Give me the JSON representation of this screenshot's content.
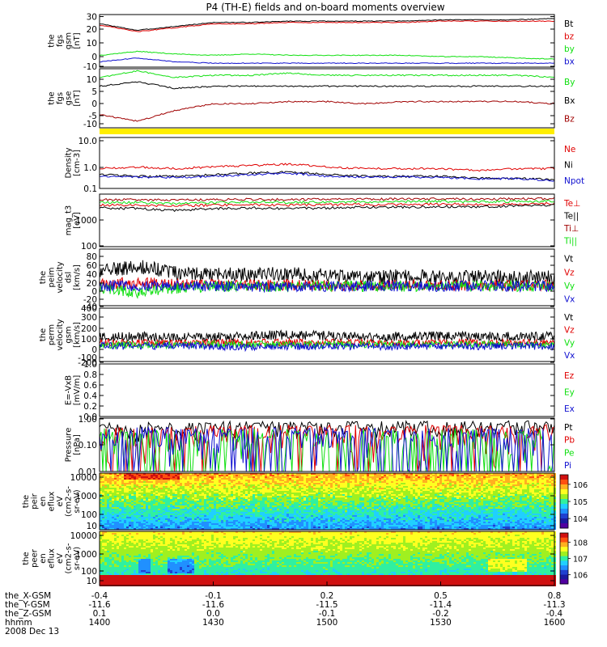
{
  "title": "P4 (TH-E) fields and on-board moments overview",
  "colors": {
    "black": "#000000",
    "red": "#e00000",
    "green": "#10e010",
    "blue": "#1010d0",
    "darkred": "#a00000",
    "yellow": "#ffee00"
  },
  "panels": [
    {
      "id": "fgs_gsm",
      "ylabel": [
        "the",
        "fgs",
        "gsm",
        "[nT]"
      ],
      "yticks": [
        "30",
        "20",
        "10",
        "0",
        "-10"
      ],
      "legend": [
        {
          "label": "Bt",
          "color": "#000000"
        },
        {
          "label": "bz",
          "color": "#e00000"
        },
        {
          "label": "by",
          "color": "#10e010"
        },
        {
          "label": "bx",
          "color": "#1010d0"
        }
      ]
    },
    {
      "id": "fgs_gse",
      "ylabel": [
        "the",
        "fgs",
        "gse",
        "[nT]"
      ],
      "yticks": [
        "10",
        "5",
        "0",
        "-5",
        "-10"
      ],
      "legend": [
        {
          "label": "By",
          "color": "#10e010"
        },
        {
          "label": "Bx",
          "color": "#000000"
        },
        {
          "label": "Bz",
          "color": "#a00000"
        }
      ]
    },
    {
      "id": "density",
      "ylabel": [
        "Density",
        "[cm-3]"
      ],
      "yticks": [
        "10.0",
        "1.0",
        "0.1"
      ],
      "legend": [
        {
          "label": "Ne",
          "color": "#e00000"
        },
        {
          "label": "Ni",
          "color": "#000000"
        },
        {
          "label": "Npot",
          "color": "#1010d0"
        }
      ]
    },
    {
      "id": "temperature",
      "ylabel": [
        "mag_t3",
        "[eV]"
      ],
      "yticks": [
        "1000",
        "100"
      ],
      "legend": [
        {
          "label": "Te⊥",
          "color": "#e00000"
        },
        {
          "label": "Te||",
          "color": "#000000"
        },
        {
          "label": "Ti⊥",
          "color": "#a00000"
        },
        {
          "label": "Ti||",
          "color": "#10e010"
        }
      ]
    },
    {
      "id": "peim_velocity",
      "ylabel": [
        "the",
        "peim",
        "velocity",
        "dsl",
        "[km/s]"
      ],
      "yticks": [
        "80",
        "60",
        "40",
        "20",
        "0",
        "-20",
        "-40"
      ],
      "legend": [
        {
          "label": "Vt",
          "color": "#000000"
        },
        {
          "label": "Vz",
          "color": "#e00000"
        },
        {
          "label": "Vy",
          "color": "#10e010"
        },
        {
          "label": "Vx",
          "color": "#1010d0"
        }
      ]
    },
    {
      "id": "perm_velocity",
      "ylabel": [
        "the",
        "perm",
        "velocity",
        "gsm",
        "[km/s]"
      ],
      "yticks": [
        "400",
        "300",
        "200",
        "100",
        "0",
        "-100",
        "-200"
      ],
      "legend": [
        {
          "label": "Vt",
          "color": "#000000"
        },
        {
          "label": "Vz",
          "color": "#e00000"
        },
        {
          "label": "Vy",
          "color": "#10e010"
        },
        {
          "label": "Vx",
          "color": "#1010d0"
        }
      ]
    },
    {
      "id": "efield",
      "ylabel": [
        "E=-VxB",
        "[mV/m]"
      ],
      "yticks": [
        "1.0",
        "0.8",
        "0.6",
        "0.4",
        "0.2",
        "0.0"
      ],
      "legend": [
        {
          "label": "Ez",
          "color": "#e00000"
        },
        {
          "label": "Ey",
          "color": "#10e010"
        },
        {
          "label": "Ex",
          "color": "#1010d0"
        }
      ]
    },
    {
      "id": "pressure",
      "ylabel": [
        "Pressure",
        "[nPa]"
      ],
      "yticks": [
        "1.00",
        "0.10",
        "0.01"
      ],
      "legend": [
        {
          "label": "Pt",
          "color": "#000000"
        },
        {
          "label": "Pb",
          "color": "#e00000"
        },
        {
          "label": "Pe",
          "color": "#10e010"
        },
        {
          "label": "Pi",
          "color": "#1010d0"
        }
      ]
    },
    {
      "id": "peir_eflux",
      "ylabel": [
        "the",
        "peir",
        "en",
        "eflux",
        "eV",
        "(cm^2-s-",
        "sr-eV)"
      ],
      "yticks": [
        "10000",
        "1000",
        "100",
        "10"
      ],
      "colorbar": [
        "10^6",
        "10^5",
        "10^4"
      ]
    },
    {
      "id": "peer_eflux",
      "ylabel": [
        "the",
        "peer",
        "en",
        "eflux",
        "eV",
        "(cm^2-s-",
        "sr-eV)"
      ],
      "yticks": [
        "10000",
        "1000",
        "100",
        "10"
      ],
      "colorbar": [
        "10^8",
        "10^7",
        "10^6"
      ]
    }
  ],
  "xaxis": {
    "row_labels": [
      "the_X-GSM",
      "the_Y-GSM",
      "the_Z-GSM",
      "hhmm",
      "2008 Dec 13"
    ],
    "columns": [
      {
        "vals": [
          "-0.4",
          "-11.6",
          "0.1",
          "1400"
        ]
      },
      {
        "vals": [
          "-0.1",
          "-11.6",
          "0.0",
          "1430"
        ]
      },
      {
        "vals": [
          "0.2",
          "-11.5",
          "-0.1",
          "1500"
        ]
      },
      {
        "vals": [
          "0.5",
          "-11.4",
          "-0.2",
          "1530"
        ]
      },
      {
        "vals": [
          "0.8",
          "-11.3",
          "-0.4",
          "1600"
        ]
      }
    ]
  },
  "chart_data": [
    {
      "type": "line",
      "panel": "fgs_gsm",
      "x_unit": "hhmm",
      "x": [
        "1400",
        "1410",
        "1420",
        "1430",
        "1440",
        "1450",
        "1500",
        "1510",
        "1520",
        "1530",
        "1540",
        "1550",
        "1600"
      ],
      "ylim": [
        -10,
        30
      ],
      "series": [
        {
          "name": "Bt",
          "values": [
            23,
            18,
            21,
            24,
            24,
            25,
            25,
            25,
            25,
            26,
            26,
            26,
            27
          ]
        },
        {
          "name": "bz",
          "values": [
            22,
            17,
            20,
            23,
            23,
            24,
            24,
            24,
            24,
            25,
            25,
            25,
            25
          ]
        },
        {
          "name": "by",
          "values": [
            -1,
            2,
            0,
            -1,
            0,
            -1,
            -1,
            -1,
            -1,
            -2,
            -2,
            -3,
            -4
          ]
        },
        {
          "name": "bx",
          "values": [
            -6,
            -3,
            -6,
            -7,
            -7,
            -7,
            -7,
            -7,
            -7,
            -7,
            -7,
            -7,
            -7
          ]
        }
      ]
    },
    {
      "type": "line",
      "panel": "fgs_gse",
      "x_unit": "hhmm",
      "x": [
        "1400",
        "1410",
        "1420",
        "1430",
        "1440",
        "1450",
        "1500",
        "1510",
        "1520",
        "1530",
        "1540",
        "1550",
        "1600"
      ],
      "ylim": [
        -15,
        12
      ],
      "series": [
        {
          "name": "By",
          "values": [
            8,
            11,
            8,
            9,
            9,
            10,
            9,
            9,
            9,
            9,
            9,
            9,
            8
          ]
        },
        {
          "name": "Bx",
          "values": [
            4,
            6,
            3,
            4,
            4,
            4,
            4,
            4,
            4,
            4,
            4,
            4,
            4
          ]
        },
        {
          "name": "Bz",
          "values": [
            -9,
            -12,
            -7,
            -4,
            -4,
            -3,
            -3,
            -4,
            -3,
            -3,
            -3,
            -3,
            -4
          ]
        }
      ]
    },
    {
      "type": "line",
      "panel": "density",
      "yscale": "log",
      "x_unit": "hhmm",
      "x": [
        "1400",
        "1410",
        "1420",
        "1430",
        "1440",
        "1450",
        "1500",
        "1510",
        "1520",
        "1530",
        "1540",
        "1550",
        "1600"
      ],
      "ylim": [
        0.1,
        10
      ],
      "series": [
        {
          "name": "Ne",
          "values": [
            0.6,
            0.7,
            0.6,
            0.7,
            0.8,
            0.9,
            0.7,
            0.6,
            0.6,
            0.6,
            0.5,
            0.6,
            0.6
          ]
        },
        {
          "name": "Ni",
          "values": [
            0.35,
            0.3,
            0.3,
            0.35,
            0.4,
            0.45,
            0.35,
            0.3,
            0.3,
            0.3,
            0.25,
            0.25,
            0.22
          ]
        },
        {
          "name": "Npot",
          "values": [
            0.3,
            0.28,
            0.27,
            0.3,
            0.35,
            0.4,
            0.3,
            0.28,
            0.28,
            0.27,
            0.24,
            0.24,
            0.2
          ]
        }
      ]
    },
    {
      "type": "line",
      "panel": "temperature",
      "yscale": "log",
      "x_unit": "hhmm",
      "x": [
        "1400",
        "1410",
        "1420",
        "1430",
        "1440",
        "1450",
        "1500",
        "1510",
        "1520",
        "1530",
        "1540",
        "1550",
        "1600"
      ],
      "ylim": [
        100,
        5000
      ],
      "series": [
        {
          "name": "Te⊥",
          "values": [
            2200,
            2200,
            2100,
            2200,
            2300,
            2200,
            2300,
            2300,
            2300,
            2400,
            2300,
            2400,
            2500
          ]
        },
        {
          "name": "Te||",
          "values": [
            1800,
            1700,
            1500,
            1700,
            1800,
            1700,
            1800,
            1900,
            1900,
            2000,
            1900,
            2100,
            2200
          ]
        },
        {
          "name": "Ti⊥",
          "values": [
            3300,
            3300,
            3200,
            3300,
            3400,
            3300,
            3400,
            3400,
            3500,
            3500,
            3400,
            3500,
            3600
          ]
        },
        {
          "name": "Ti||",
          "values": [
            2700,
            2700,
            2500,
            2600,
            2800,
            2700,
            2800,
            2800,
            2900,
            2900,
            2800,
            2900,
            3000
          ]
        }
      ]
    },
    {
      "type": "line",
      "panel": "peim_velocity",
      "x_unit": "hhmm",
      "x": [
        "1400",
        "1410",
        "1420",
        "1430",
        "1440",
        "1450",
        "1500",
        "1510",
        "1520",
        "1530",
        "1540",
        "1550",
        "1600"
      ],
      "ylim": [
        -45,
        85
      ],
      "series": [
        {
          "name": "Vt",
          "values": [
            35,
            45,
            30,
            28,
            25,
            30,
            25,
            20,
            22,
            20,
            20,
            20,
            20
          ]
        },
        {
          "name": "Vz",
          "values": [
            5,
            8,
            5,
            3,
            2,
            3,
            2,
            2,
            2,
            2,
            2,
            2,
            2
          ]
        },
        {
          "name": "Vy",
          "values": [
            -5,
            -15,
            -5,
            0,
            0,
            -2,
            0,
            0,
            0,
            0,
            0,
            0,
            0
          ]
        },
        {
          "name": "Vx",
          "values": [
            0,
            0,
            0,
            0,
            -2,
            -3,
            0,
            0,
            0,
            0,
            0,
            0,
            0
          ]
        }
      ]
    },
    {
      "type": "line",
      "panel": "perm_velocity",
      "x_unit": "hhmm",
      "x": [
        "1400",
        "1410",
        "1420",
        "1430",
        "1440",
        "1450",
        "1500",
        "1510",
        "1520",
        "1530",
        "1540",
        "1550",
        "1600"
      ],
      "ylim": [
        -200,
        400
      ],
      "series": [
        {
          "name": "Vt",
          "values": [
            70,
            80,
            70,
            80,
            90,
            100,
            90,
            80,
            80,
            90,
            80,
            80,
            80
          ]
        },
        {
          "name": "Vz",
          "values": [
            10,
            10,
            5,
            10,
            10,
            15,
            10,
            10,
            10,
            10,
            10,
            10,
            10
          ]
        },
        {
          "name": "Vy",
          "values": [
            -10,
            -20,
            -10,
            -5,
            -10,
            -10,
            -10,
            -5,
            -5,
            -10,
            -10,
            -10,
            -10
          ]
        },
        {
          "name": "Vx",
          "values": [
            -20,
            -30,
            -20,
            -30,
            -40,
            -30,
            -30,
            -30,
            -30,
            -30,
            -30,
            -30,
            -30
          ]
        }
      ]
    },
    {
      "type": "line",
      "panel": "efield",
      "x_unit": "hhmm",
      "x": [],
      "ylim": [
        0,
        1
      ],
      "series": [
        {
          "name": "Ez",
          "values": []
        },
        {
          "name": "Ey",
          "values": []
        },
        {
          "name": "Ex",
          "values": []
        }
      ]
    },
    {
      "type": "line",
      "panel": "pressure",
      "yscale": "log",
      "x_unit": "hhmm",
      "x": [
        "1400",
        "1410",
        "1420",
        "1430",
        "1440",
        "1450",
        "1500",
        "1510",
        "1520",
        "1530",
        "1540",
        "1550",
        "1600"
      ],
      "ylim": [
        0.01,
        1.0
      ],
      "series": [
        {
          "name": "Pt",
          "values": [
            0.42,
            0.42,
            0.43,
            0.45,
            0.45,
            0.46,
            0.47,
            0.47,
            0.47,
            0.48,
            0.49,
            0.5,
            0.52
          ]
        },
        {
          "name": "Pb",
          "values": [
            0.2,
            0.14,
            0.18,
            0.23,
            0.23,
            0.25,
            0.25,
            0.25,
            0.25,
            0.27,
            0.27,
            0.28,
            0.3
          ]
        },
        {
          "name": "Pe",
          "values": [
            0.12,
            0.1,
            0.09,
            0.1,
            0.1,
            0.1,
            0.1,
            0.1,
            0.1,
            0.1,
            0.1,
            0.09,
            0.09
          ]
        },
        {
          "name": "Pi",
          "values": [
            0.15,
            0.22,
            0.16,
            0.15,
            0.16,
            0.15,
            0.15,
            0.15,
            0.15,
            0.14,
            0.14,
            0.13,
            0.12
          ]
        }
      ]
    },
    {
      "type": "heatmap",
      "panel": "peir_eflux",
      "yscale": "log",
      "ylim": [
        5,
        20000
      ],
      "colorscale": "rainbow",
      "clim": [
        3000,
        3000000
      ]
    },
    {
      "type": "heatmap",
      "panel": "peer_eflux",
      "yscale": "log",
      "ylim": [
        5,
        20000
      ],
      "colorscale": "rainbow",
      "clim": [
        300000,
        300000000
      ]
    }
  ]
}
